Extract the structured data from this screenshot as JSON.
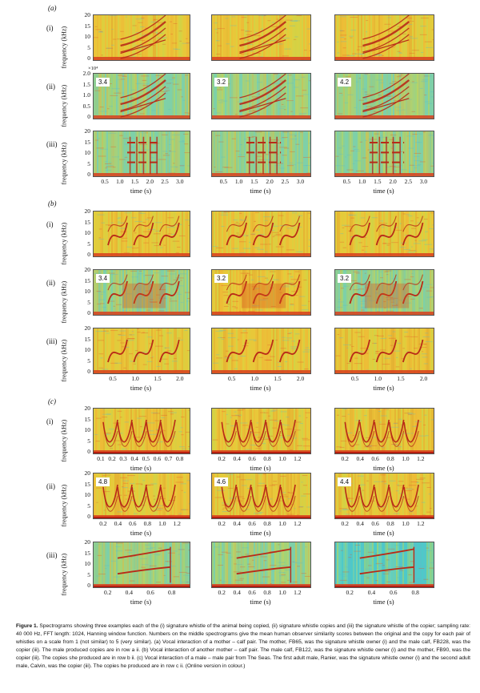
{
  "sections": [
    {
      "letter": "(a)",
      "rows": [
        {
          "numeral": "(i)",
          "ticks": [
            "20",
            "15",
            "10",
            "5",
            "0"
          ],
          "scores": [],
          "exponent": ""
        },
        {
          "numeral": "(ii)",
          "ticks": [
            "2.0",
            "1.5",
            "1.0",
            "0.5",
            "0"
          ],
          "scores": [
            "3.4",
            "3.2",
            "4.2"
          ],
          "exponent": "×10⁴"
        },
        {
          "numeral": "(iii)",
          "ticks": [
            "20",
            "15",
            "10",
            "5",
            "0"
          ],
          "scores": [],
          "exponent": ""
        }
      ],
      "xticks": [
        [
          "0.5",
          "1.0",
          "1.5",
          "2.0",
          "2.5",
          "3.0"
        ],
        [
          "0.5",
          "1.0",
          "1.5",
          "2.0",
          "2.5",
          "3.0"
        ],
        [
          "0.5",
          "1.0",
          "1.5",
          "2.0",
          "2.5",
          "3.0"
        ]
      ]
    },
    {
      "letter": "(b)",
      "rows": [
        {
          "numeral": "(i)",
          "ticks": [
            "20",
            "15",
            "10",
            "5",
            "0"
          ],
          "scores": [],
          "exponent": ""
        },
        {
          "numeral": "(ii)",
          "ticks": [
            "20",
            "15",
            "10",
            "5",
            "0"
          ],
          "scores": [
            "3.4",
            "3.2",
            "3.2"
          ],
          "exponent": ""
        },
        {
          "numeral": "(iii)",
          "ticks": [
            "20",
            "15",
            "10",
            "5",
            "0"
          ],
          "scores": [],
          "exponent": ""
        }
      ],
      "xticks": [
        [
          "0.5",
          "1.0",
          "1.5",
          "2.0"
        ],
        [
          "0.5",
          "1.0",
          "1.5",
          "2.0"
        ],
        [
          "0.5",
          "1.0",
          "1.5",
          "2.0"
        ]
      ]
    },
    {
      "letter": "(c)",
      "rows": [
        {
          "numeral": "(i)",
          "ticks": [
            "20",
            "15",
            "10",
            "5",
            "0"
          ],
          "scores": [],
          "exponent": ""
        },
        {
          "numeral": "(ii)",
          "ticks": [
            "20",
            "15",
            "10",
            "5",
            "0"
          ],
          "scores": [
            "4.8",
            "4.6",
            "4.4"
          ],
          "exponent": ""
        },
        {
          "numeral": "(iii)",
          "ticks": [
            "20",
            "15",
            "10",
            "5",
            "0"
          ],
          "scores": [],
          "exponent": ""
        }
      ],
      "xticks_by_row": [
        [
          [
            "0.1",
            "0.2",
            "0.3",
            "0.4",
            "0.5",
            "0.6",
            "0.7",
            "0.8"
          ],
          [
            "0.2",
            "0.4",
            "0.6",
            "0.8",
            "1.0",
            "1.2"
          ],
          [
            "0.2",
            "0.4",
            "0.6",
            "0.8",
            "1.0",
            "1.2"
          ]
        ],
        [
          [
            "0.2",
            "0.4",
            "0.6",
            "0.8",
            "1.0",
            "1.2"
          ],
          [
            "0.2",
            "0.4",
            "0.6",
            "0.8",
            "1.0",
            "1.2"
          ],
          [
            "0.2",
            "0.4",
            "0.6",
            "0.8",
            "1.0",
            "1.2"
          ]
        ],
        [
          [
            "0.2",
            "0.4",
            "0.6",
            "0.8"
          ],
          [
            "0.2",
            "0.4",
            "0.6",
            "0.8",
            "1.0",
            "1.2"
          ],
          [
            "0.2",
            "0.4",
            "0.6",
            "0.8"
          ]
        ]
      ]
    }
  ],
  "ylabel": "frequency (kHz)",
  "xlabel": "time (s)",
  "caption": {
    "label": "Figure 1.",
    "text": " Spectrograms showing three examples each of the (i) signature whistle of the animal being copied, (ii) signature whistle copies and (iii) the signature whistle of the copier; sampling rate: 40 000 Hz, FFT length: 1024, Hanning window function. Numbers on the middle spectrograms give the mean human observer similarity scores between the original and the copy for each pair of whistles on a scale from 1 (not similar) to 5 (very similar). (a) Vocal interaction of a mother – calf pair. The mother, FB65, was the signature whistle owner (i) and the male calf, FB228, was the copier (iii). The male produced copies are in row a ii. (b) Vocal interaction of another mother – calf pair. The male calf, FB122, was the signature whistle owner (i) and the mother, FB90, was the copier (iii). The copies she produced are in row b ii. (c) Vocal interaction of a male – male pair from The Seas. The first adult male, Ranier, was the signature whistle owner (i) and the second adult male, Calvin, was the copier (iii). The copies he produced are in row c ii. (Online version in colour.)"
  }
}
